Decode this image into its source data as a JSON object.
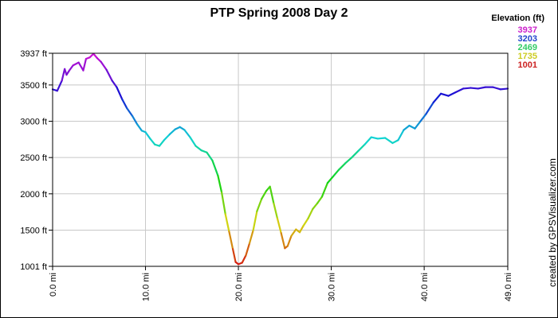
{
  "chart_data": {
    "type": "line",
    "title": "PTP Spring 2008 Day 2",
    "xlabel": "",
    "ylabel": "",
    "xlim": [
      0,
      49
    ],
    "ylim": [
      1001,
      3937
    ],
    "x_unit": "mi",
    "y_unit": "ft",
    "grid": true,
    "legend_position": "top-right",
    "x_ticks": [
      "0.0 mi",
      "10.0 mi",
      "20.0 mi",
      "30.0 mi",
      "40.0 mi",
      "49.0 mi"
    ],
    "y_ticks": [
      "3937 ft",
      "3500 ft",
      "3000 ft",
      "2500 ft",
      "2000 ft",
      "1500 ft",
      "1001 ft"
    ],
    "legend": {
      "title": "Elevation (ft)",
      "entries": [
        {
          "label": "3937",
          "color": "#cc22cc"
        },
        {
          "label": "3203",
          "color": "#2244cc"
        },
        {
          "label": "2469",
          "color": "#33cc66"
        },
        {
          "label": "1735",
          "color": "#cccc22"
        },
        {
          "label": "1001",
          "color": "#cc2222"
        }
      ]
    },
    "series": [
      {
        "x": [
          0,
          0.5,
          1.0,
          1.3,
          1.5,
          1.8,
          2.2,
          2.8,
          3.3,
          3.6,
          4.0,
          4.4,
          4.8,
          5.2,
          5.8,
          6.4,
          6.9,
          7.5,
          8.0,
          8.6,
          9.1,
          9.6,
          10.0,
          10.5,
          11.0,
          11.5,
          12.0,
          12.6,
          13.2,
          13.7,
          14.2,
          14.8,
          15.4,
          16.0,
          16.6,
          17.2,
          17.8,
          18.2,
          18.6,
          19.0,
          19.4,
          19.7,
          20.0,
          20.4,
          20.8,
          21.2,
          21.6,
          22.0,
          22.5,
          23.0,
          23.4,
          23.8,
          24.2,
          24.6,
          25.0,
          25.3,
          25.7,
          26.2,
          26.6,
          27.0,
          27.5,
          28.0,
          28.5,
          29.0,
          29.6,
          30.2,
          30.8,
          31.5,
          32.2,
          32.9,
          33.6,
          34.3,
          35.0,
          35.8,
          36.6,
          37.2,
          37.8,
          38.4,
          39.0,
          39.6,
          40.2,
          41.0,
          41.8,
          42.6,
          43.4,
          44.2,
          45.0,
          45.8,
          46.6,
          47.4,
          48.2,
          49.0
        ],
        "y": [
          3440,
          3420,
          3560,
          3720,
          3640,
          3700,
          3770,
          3810,
          3700,
          3860,
          3880,
          3930,
          3870,
          3820,
          3710,
          3560,
          3470,
          3300,
          3180,
          3070,
          2960,
          2870,
          2850,
          2760,
          2680,
          2660,
          2740,
          2820,
          2890,
          2920,
          2880,
          2780,
          2660,
          2600,
          2570,
          2460,
          2250,
          2020,
          1720,
          1480,
          1240,
          1060,
          1030,
          1050,
          1150,
          1320,
          1500,
          1760,
          1930,
          2040,
          2100,
          1870,
          1660,
          1460,
          1250,
          1280,
          1420,
          1510,
          1470,
          1560,
          1660,
          1790,
          1870,
          1960,
          2150,
          2240,
          2330,
          2420,
          2500,
          2590,
          2680,
          2780,
          2760,
          2770,
          2700,
          2740,
          2880,
          2940,
          2900,
          3000,
          3100,
          3260,
          3380,
          3350,
          3400,
          3450,
          3460,
          3450,
          3470,
          3470,
          3440,
          3450
        ]
      }
    ]
  },
  "credit": "created by GPSVisualizer.com"
}
